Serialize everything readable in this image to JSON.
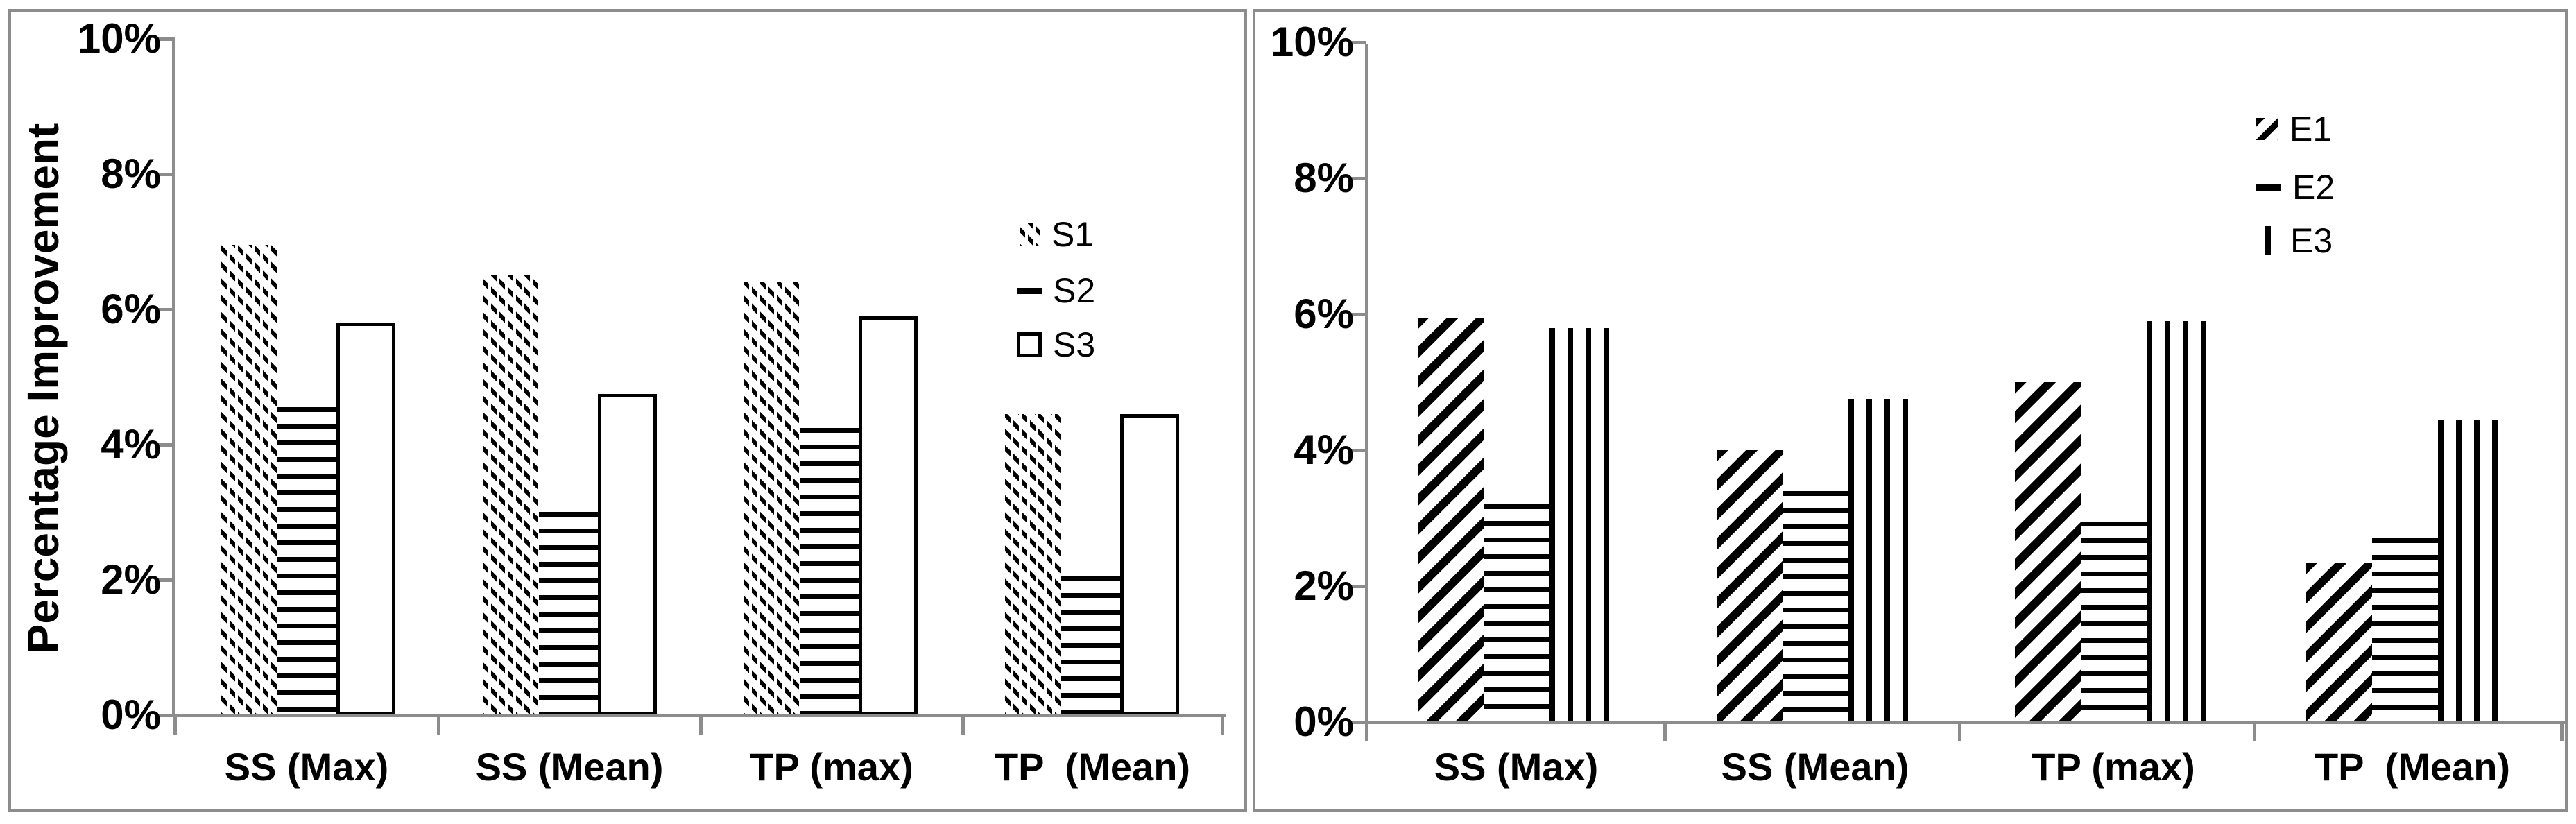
{
  "figure": {
    "description": "Two grouped bar chart panels showing percentage improvement",
    "axis_color": "#8c8c8c",
    "bar_color": "#000000",
    "background": "#ffffff"
  },
  "chart_data": [
    {
      "type": "bar",
      "panel": "left",
      "title": "",
      "xlabel": "",
      "ylabel": "Percentage Improvement",
      "ylim": [
        0,
        10
      ],
      "ytick_labels": [
        "0%",
        "2%",
        "4%",
        "6%",
        "8%",
        "10%"
      ],
      "ytick_values": [
        0,
        2,
        4,
        6,
        8,
        10
      ],
      "grid": false,
      "legend_position": "inside-upper-right",
      "categories": [
        "SS (Max)",
        "SS (Mean)",
        "TP (max)",
        "TP  (Mean)"
      ],
      "series": [
        {
          "name": "S1",
          "pattern": "thin-diagonal-hatch",
          "swatch": "thin-diag",
          "values": [
            6.95,
            6.5,
            6.4,
            4.45
          ]
        },
        {
          "name": "S2",
          "pattern": "horizontal-lines",
          "swatch": "dash",
          "values": [
            4.55,
            3.0,
            4.25,
            2.05
          ]
        },
        {
          "name": "S3",
          "pattern": "plain-outline",
          "swatch": "open",
          "values": [
            5.8,
            4.75,
            5.9,
            4.45
          ]
        }
      ]
    },
    {
      "type": "bar",
      "panel": "right",
      "title": "",
      "xlabel": "",
      "ylabel": "",
      "ylim": [
        0,
        10
      ],
      "ytick_labels": [
        "0%",
        "2%",
        "4%",
        "6%",
        "8%",
        "10%"
      ],
      "ytick_values": [
        0,
        2,
        4,
        6,
        8,
        10
      ],
      "grid": false,
      "legend_position": "inside-upper-right",
      "categories": [
        "SS (Max)",
        "SS (Mean)",
        "TP (max)",
        "TP  (Mean)"
      ],
      "series": [
        {
          "name": "E1",
          "pattern": "bold-diagonal-stripes",
          "swatch": "bold-diag",
          "values": [
            5.95,
            4.0,
            5.0,
            2.35
          ]
        },
        {
          "name": "E2",
          "pattern": "horizontal-lines",
          "swatch": "dash",
          "values": [
            3.2,
            3.4,
            2.95,
            2.7
          ]
        },
        {
          "name": "E3",
          "pattern": "vertical-lines",
          "swatch": "vbar",
          "values": [
            5.8,
            4.75,
            5.9,
            4.45
          ]
        }
      ]
    }
  ]
}
